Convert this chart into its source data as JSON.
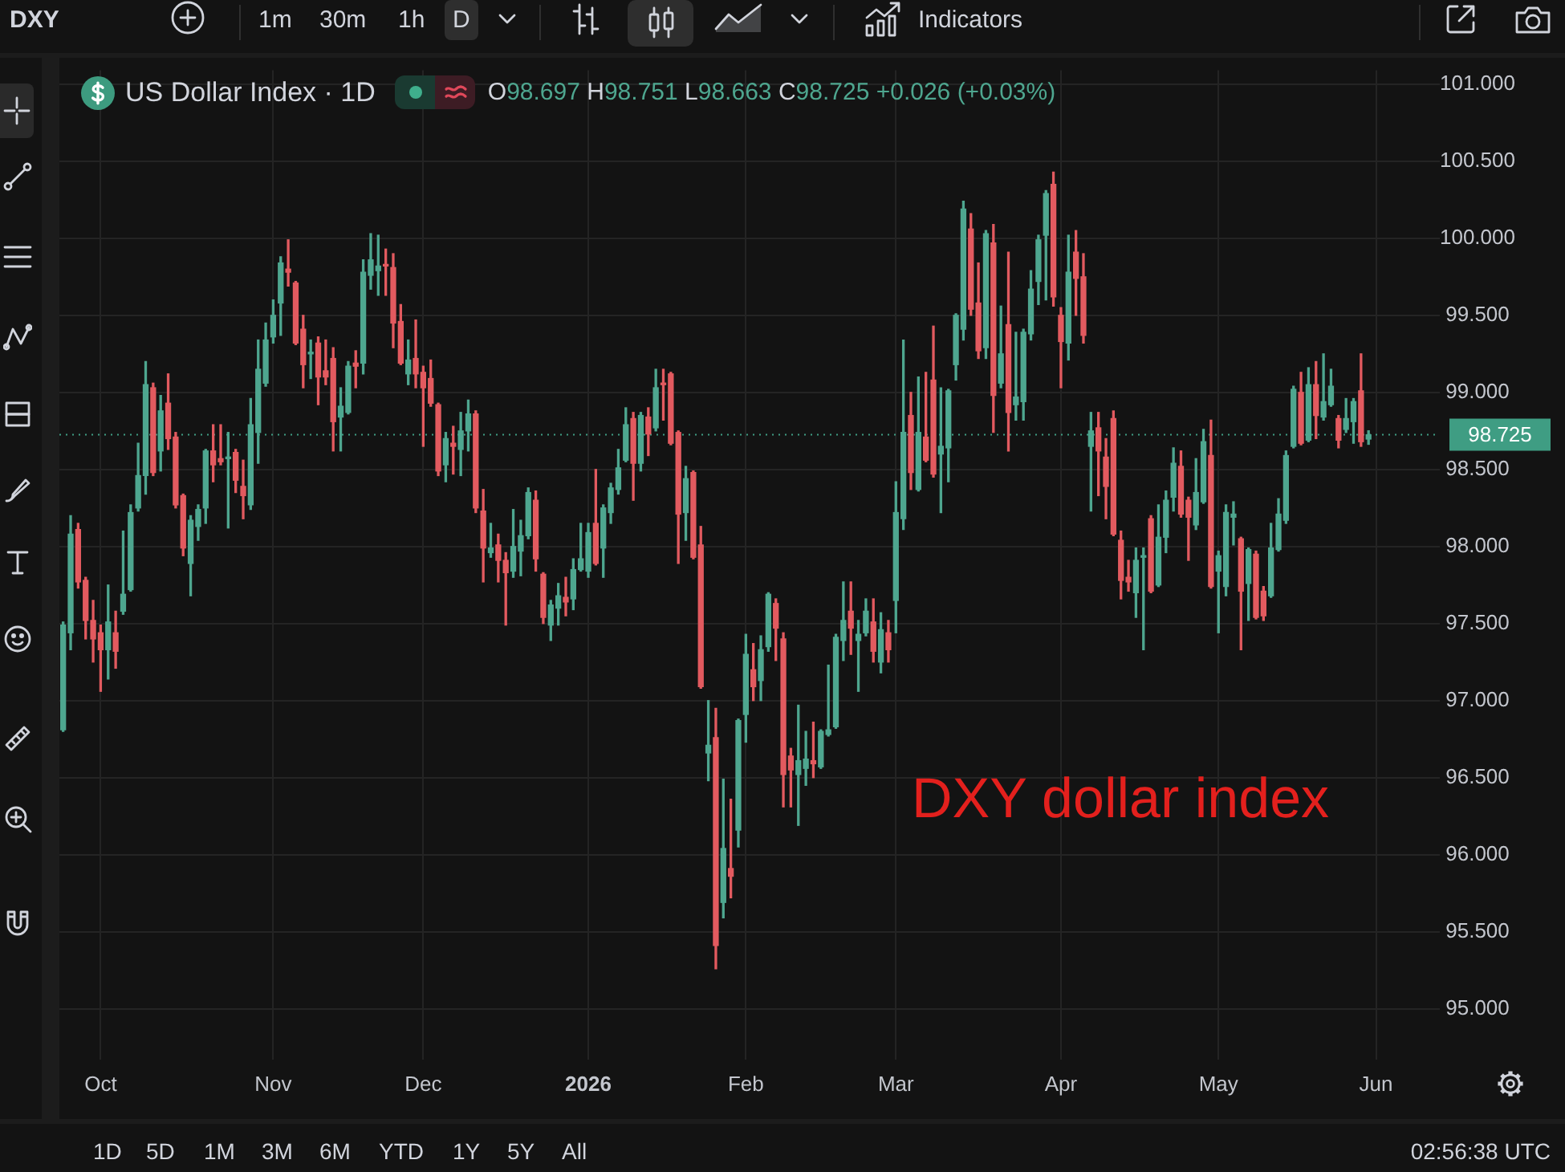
{
  "chart_data": {
    "type": "candlestick",
    "title": "US Dollar Index · 1D",
    "subtitle": "O98.697 H98.751 L98.663 C98.725 +0.026 (+0.03%)",
    "annotations": [
      "DXY dollar index",
      "DXY",
      "1m",
      "30m",
      "1h",
      "D",
      "Indicators",
      "1D",
      "5D",
      "1M",
      "3M",
      "6M",
      "YTD",
      "1Y",
      "5Y",
      "All",
      "02:56:38 UTC"
    ],
    "categories": [
      null,
      null,
      null,
      null,
      null,
      "Oct",
      null,
      null,
      null,
      null,
      null,
      null,
      null,
      null,
      null,
      null,
      null,
      null,
      null,
      null,
      null,
      null,
      null,
      null,
      null,
      null,
      null,
      null,
      "Nov",
      null,
      null,
      null,
      null,
      null,
      null,
      null,
      null,
      null,
      null,
      null,
      null,
      null,
      null,
      null,
      null,
      null,
      null,
      null,
      "Dec",
      null,
      null,
      null,
      null,
      null,
      null,
      null,
      null,
      null,
      null,
      null,
      null,
      null,
      null,
      null,
      null,
      null,
      null,
      null,
      null,
      null,
      "2026",
      null,
      null,
      null,
      null,
      null,
      null,
      null,
      null,
      null,
      null,
      null,
      null,
      null,
      null,
      null,
      null,
      null,
      null,
      null,
      null,
      "Feb",
      null,
      null,
      null,
      null,
      null,
      null,
      null,
      null,
      null,
      null,
      null,
      null,
      null,
      null,
      null,
      null,
      null,
      null,
      null,
      "Mar",
      null,
      null,
      null,
      null,
      null,
      null,
      null,
      null,
      null,
      null,
      null,
      null,
      null,
      null,
      null,
      null,
      null,
      null,
      null,
      null,
      null,
      "Apr",
      null,
      null,
      null,
      null,
      null,
      null,
      null,
      null,
      null,
      null,
      null,
      null,
      null,
      null,
      null,
      null,
      null,
      null,
      null,
      null,
      "May",
      null,
      null,
      null,
      null,
      null,
      null,
      null,
      null,
      null,
      null,
      null,
      null,
      null,
      null,
      null,
      null,
      null,
      null,
      null,
      null,
      "Jun"
    ],
    "ohlc": [
      [
        96.81,
        97.51,
        96.8,
        97.49
      ],
      [
        97.44,
        98.2,
        97.33,
        98.08
      ],
      [
        98.11,
        98.15,
        97.73,
        97.77
      ],
      [
        97.78,
        97.8,
        97.4,
        97.52
      ],
      [
        97.52,
        97.65,
        97.25,
        97.4
      ],
      [
        97.44,
        97.49,
        97.06,
        97.33
      ],
      [
        97.33,
        97.75,
        97.14,
        97.51
      ],
      [
        97.44,
        97.58,
        97.21,
        97.32
      ],
      [
        97.58,
        98.1,
        97.56,
        97.69
      ],
      [
        97.72,
        98.27,
        97.71,
        98.22
      ],
      [
        98.25,
        98.67,
        98.23,
        98.46
      ],
      [
        98.46,
        99.2,
        98.34,
        99.05
      ],
      [
        99.03,
        99.06,
        98.46,
        98.48
      ],
      [
        98.62,
        98.98,
        98.49,
        98.88
      ],
      [
        98.93,
        99.12,
        98.63,
        98.7
      ],
      [
        98.71,
        98.74,
        98.25,
        98.27
      ],
      [
        98.33,
        98.34,
        97.94,
        97.99
      ],
      [
        97.89,
        98.2,
        97.68,
        98.17
      ],
      [
        98.13,
        98.27,
        98.04,
        98.24
      ],
      [
        98.25,
        98.63,
        98.15,
        98.62
      ],
      [
        98.62,
        98.79,
        98.42,
        98.53
      ],
      [
        98.57,
        98.79,
        98.53,
        98.55
      ],
      [
        98.57,
        98.74,
        98.12,
        98.58
      ],
      [
        98.61,
        98.63,
        98.35,
        98.43
      ],
      [
        98.39,
        98.56,
        98.18,
        98.33
      ],
      [
        98.27,
        98.96,
        98.24,
        98.79
      ],
      [
        98.74,
        99.34,
        98.54,
        99.15
      ],
      [
        99.06,
        99.45,
        99.04,
        99.34
      ],
      [
        99.36,
        99.6,
        99.32,
        99.5
      ],
      [
        99.58,
        99.88,
        99.37,
        99.84
      ],
      [
        99.8,
        99.99,
        99.69,
        99.78
      ],
      [
        99.71,
        99.72,
        99.31,
        99.32
      ],
      [
        99.41,
        99.5,
        99.03,
        99.18
      ],
      [
        99.25,
        99.34,
        99.09,
        99.26
      ],
      [
        99.32,
        99.36,
        98.92,
        99.1
      ],
      [
        99.14,
        99.34,
        99.05,
        99.1
      ],
      [
        99.22,
        99.29,
        98.62,
        98.81
      ],
      [
        98.84,
        99.03,
        98.62,
        98.91
      ],
      [
        98.87,
        99.2,
        98.86,
        99.17
      ],
      [
        99.19,
        99.27,
        99.03,
        99.17
      ],
      [
        99.19,
        99.86,
        99.12,
        99.78
      ],
      [
        99.76,
        100.03,
        99.67,
        99.86
      ],
      [
        99.79,
        100.02,
        99.63,
        99.82
      ],
      [
        99.83,
        99.93,
        99.63,
        99.82
      ],
      [
        99.81,
        99.9,
        99.29,
        99.45
      ],
      [
        99.46,
        99.57,
        99.18,
        99.19
      ],
      [
        99.12,
        99.34,
        99.05,
        99.21
      ],
      [
        99.22,
        99.47,
        99.03,
        99.12
      ],
      [
        99.13,
        99.17,
        98.65,
        99.03
      ],
      [
        99.09,
        99.21,
        98.91,
        98.93
      ],
      [
        98.92,
        98.93,
        98.46,
        98.49
      ],
      [
        98.53,
        98.74,
        98.42,
        98.7
      ],
      [
        98.67,
        98.78,
        98.47,
        98.65
      ],
      [
        98.63,
        98.87,
        98.46,
        98.75
      ],
      [
        98.75,
        98.95,
        98.62,
        98.86
      ],
      [
        98.86,
        98.88,
        98.22,
        98.25
      ],
      [
        98.23,
        98.37,
        97.77,
        97.99
      ],
      [
        97.96,
        98.15,
        97.93,
        97.99
      ],
      [
        98.01,
        98.08,
        97.77,
        97.91
      ],
      [
        97.91,
        97.96,
        97.49,
        97.83
      ],
      [
        97.84,
        98.24,
        97.8,
        98.0
      ],
      [
        97.97,
        98.17,
        97.81,
        98.07
      ],
      [
        98.07,
        98.38,
        98.05,
        98.35
      ],
      [
        98.3,
        98.36,
        97.84,
        97.92
      ],
      [
        97.82,
        97.83,
        97.5,
        97.54
      ],
      [
        97.49,
        97.65,
        97.39,
        97.62
      ],
      [
        97.6,
        97.76,
        97.49,
        97.68
      ],
      [
        97.67,
        97.8,
        97.55,
        97.64
      ],
      [
        97.66,
        97.92,
        97.59,
        97.85
      ],
      [
        97.85,
        98.15,
        97.84,
        97.92
      ],
      [
        97.84,
        98.15,
        97.8,
        98.09
      ],
      [
        98.15,
        98.5,
        97.88,
        97.89
      ],
      [
        97.99,
        98.27,
        97.8,
        98.25
      ],
      [
        98.22,
        98.41,
        98.15,
        98.38
      ],
      [
        98.37,
        98.63,
        98.34,
        98.51
      ],
      [
        98.56,
        98.9,
        98.55,
        98.79
      ],
      [
        98.83,
        98.87,
        98.3,
        98.54
      ],
      [
        98.54,
        98.87,
        98.49,
        98.85
      ],
      [
        98.84,
        98.9,
        98.59,
        98.73
      ],
      [
        98.77,
        99.15,
        98.75,
        99.03
      ],
      [
        99.06,
        99.15,
        98.82,
        99.05
      ],
      [
        99.12,
        99.13,
        98.66,
        98.67
      ],
      [
        98.74,
        98.75,
        97.89,
        98.21
      ],
      [
        98.22,
        98.52,
        98.04,
        98.44
      ],
      [
        98.48,
        98.49,
        97.92,
        97.93
      ],
      [
        98.01,
        98.13,
        97.08,
        97.09
      ],
      [
        96.66,
        97.0,
        96.48,
        96.71
      ],
      [
        96.76,
        96.95,
        95.26,
        95.41
      ],
      [
        95.69,
        96.49,
        95.59,
        96.04
      ],
      [
        95.91,
        96.36,
        95.72,
        95.86
      ],
      [
        96.16,
        96.88,
        96.05,
        96.87
      ],
      [
        96.91,
        97.43,
        96.73,
        97.3
      ],
      [
        97.2,
        97.37,
        97.0,
        97.09
      ],
      [
        97.13,
        97.42,
        97.0,
        97.33
      ],
      [
        97.35,
        97.7,
        97.32,
        97.69
      ],
      [
        97.63,
        97.66,
        97.26,
        97.47
      ],
      [
        97.4,
        97.44,
        96.31,
        96.52
      ],
      [
        96.64,
        96.69,
        96.31,
        96.55
      ],
      [
        96.52,
        96.97,
        96.19,
        96.61
      ],
      [
        96.56,
        96.8,
        96.45,
        96.62
      ],
      [
        96.61,
        96.86,
        96.5,
        96.59
      ],
      [
        96.57,
        96.81,
        96.56,
        96.8
      ],
      [
        96.78,
        97.23,
        96.77,
        96.81
      ],
      [
        96.83,
        97.43,
        96.82,
        97.41
      ],
      [
        97.39,
        97.77,
        97.26,
        97.52
      ],
      [
        97.58,
        97.77,
        97.3,
        97.47
      ],
      [
        97.39,
        97.52,
        97.06,
        97.43
      ],
      [
        97.44,
        97.66,
        97.42,
        97.58
      ],
      [
        97.51,
        97.66,
        97.25,
        97.32
      ],
      [
        97.25,
        97.57,
        97.18,
        97.46
      ],
      [
        97.44,
        97.52,
        97.25,
        97.33
      ],
      [
        97.65,
        98.42,
        97.44,
        98.22
      ],
      [
        98.18,
        99.34,
        98.11,
        98.74
      ],
      [
        98.85,
        99.0,
        98.37,
        98.48
      ],
      [
        98.37,
        99.1,
        98.36,
        98.74
      ],
      [
        98.71,
        99.13,
        98.55,
        98.56
      ],
      [
        99.08,
        99.43,
        98.45,
        98.47
      ],
      [
        98.6,
        99.03,
        98.22,
        98.65
      ],
      [
        98.64,
        99.02,
        98.42,
        99.01
      ],
      [
        99.18,
        99.51,
        99.08,
        99.5
      ],
      [
        99.41,
        100.24,
        99.34,
        100.19
      ],
      [
        100.06,
        100.16,
        99.5,
        99.54
      ],
      [
        99.58,
        99.84,
        99.22,
        99.27
      ],
      [
        99.29,
        100.05,
        99.22,
        100.03
      ],
      [
        99.97,
        100.09,
        98.74,
        98.98
      ],
      [
        99.06,
        99.56,
        99.03,
        99.25
      ],
      [
        99.44,
        99.91,
        98.62,
        98.87
      ],
      [
        98.92,
        99.39,
        98.82,
        98.97
      ],
      [
        98.94,
        99.41,
        98.82,
        99.39
      ],
      [
        99.38,
        99.79,
        99.34,
        99.67
      ],
      [
        99.72,
        100.02,
        99.57,
        99.99
      ],
      [
        100.02,
        100.31,
        99.6,
        100.29
      ],
      [
        100.35,
        100.43,
        99.56,
        99.62
      ],
      [
        99.5,
        99.55,
        99.03,
        99.33
      ],
      [
        99.32,
        100.02,
        99.21,
        99.78
      ],
      [
        99.91,
        100.05,
        99.5,
        99.74
      ],
      [
        99.75,
        99.9,
        99.32,
        99.37
      ],
      [
        98.65,
        98.87,
        98.23,
        98.75
      ],
      [
        98.77,
        98.87,
        98.33,
        98.62
      ],
      [
        98.58,
        98.7,
        98.18,
        98.39
      ],
      [
        98.83,
        98.88,
        98.07,
        98.08
      ],
      [
        98.04,
        98.1,
        97.66,
        97.78
      ],
      [
        97.8,
        97.91,
        97.71,
        97.77
      ],
      [
        97.7,
        97.99,
        97.54,
        97.91
      ],
      [
        97.93,
        97.99,
        97.33,
        97.94
      ],
      [
        98.18,
        98.2,
        97.7,
        97.71
      ],
      [
        97.75,
        98.27,
        97.74,
        98.06
      ],
      [
        98.06,
        98.36,
        97.96,
        98.3
      ],
      [
        98.32,
        98.64,
        98.23,
        98.54
      ],
      [
        98.52,
        98.62,
        98.19,
        98.21
      ],
      [
        98.3,
        98.32,
        97.91,
        98.19
      ],
      [
        98.14,
        98.57,
        98.11,
        98.35
      ],
      [
        98.29,
        98.76,
        98.28,
        98.68
      ],
      [
        98.59,
        98.82,
        97.73,
        97.74
      ],
      [
        97.84,
        97.97,
        97.44,
        97.94
      ],
      [
        97.74,
        98.27,
        97.68,
        98.22
      ],
      [
        98.19,
        98.29,
        98.01,
        98.21
      ],
      [
        98.05,
        98.06,
        97.33,
        97.71
      ],
      [
        97.76,
        97.99,
        97.52,
        97.98
      ],
      [
        97.95,
        97.97,
        97.53,
        97.54
      ],
      [
        97.71,
        97.74,
        97.52,
        97.55
      ],
      [
        97.68,
        98.15,
        97.67,
        97.99
      ],
      [
        97.98,
        98.31,
        97.97,
        98.21
      ],
      [
        98.17,
        98.62,
        98.15,
        98.59
      ],
      [
        98.65,
        99.04,
        98.64,
        99.02
      ],
      [
        99.0,
        99.13,
        98.66,
        98.67
      ],
      [
        98.69,
        99.16,
        98.68,
        99.05
      ],
      [
        99.05,
        99.2,
        98.7,
        98.85
      ],
      [
        98.84,
        99.25,
        98.82,
        98.94
      ],
      [
        98.92,
        99.15,
        98.91,
        99.04
      ],
      [
        98.83,
        98.85,
        98.64,
        98.69
      ],
      [
        98.76,
        98.96,
        98.74,
        98.83
      ],
      [
        98.81,
        98.96,
        98.67,
        98.94
      ],
      [
        99.01,
        99.25,
        98.65,
        98.68
      ],
      [
        98.697,
        98.751,
        98.663,
        98.725
      ],
      null
    ],
    "colors": [
      "#4ea68f",
      "#4ea68f",
      "#e25a5f",
      "#e25a5f",
      "#e25a5f",
      "#e25a5f",
      "#4ea68f",
      "#e25a5f",
      "#4ea68f",
      "#4ea68f",
      "#4ea68f",
      "#4ea68f",
      "#e25a5f",
      "#4ea68f",
      "#e25a5f",
      "#e25a5f",
      "#e25a5f",
      "#4ea68f",
      "#4ea68f",
      "#4ea68f",
      "#e25a5f",
      "#e25a5f",
      "#4ea68f",
      "#e25a5f",
      "#e25a5f",
      "#4ea68f",
      "#4ea68f",
      "#4ea68f",
      "#4ea68f",
      "#4ea68f",
      "#e25a5f",
      "#e25a5f",
      "#e25a5f",
      "#4ea68f",
      "#e25a5f",
      "#e25a5f",
      "#e25a5f",
      "#4ea68f",
      "#4ea68f",
      "#e25a5f",
      "#4ea68f",
      "#4ea68f",
      "#4ea68f",
      "#e25a5f",
      "#e25a5f",
      "#e25a5f",
      "#4ea68f",
      "#e25a5f",
      "#e25a5f",
      "#e25a5f",
      "#e25a5f",
      "#4ea68f",
      "#e25a5f",
      "#4ea68f",
      "#4ea68f",
      "#e25a5f",
      "#e25a5f",
      "#4ea68f",
      "#e25a5f",
      "#e25a5f",
      "#4ea68f",
      "#4ea68f",
      "#4ea68f",
      "#e25a5f",
      "#e25a5f",
      "#4ea68f",
      "#4ea68f",
      "#e25a5f",
      "#4ea68f",
      "#4ea68f",
      "#4ea68f",
      "#e25a5f",
      "#4ea68f",
      "#4ea68f",
      "#4ea68f",
      "#4ea68f",
      "#e25a5f",
      "#4ea68f",
      "#e25a5f",
      "#4ea68f",
      "#e25a5f",
      "#e25a5f",
      "#e25a5f",
      "#4ea68f",
      "#e25a5f",
      "#e25a5f",
      "#4ea68f",
      "#e25a5f",
      "#4ea68f",
      "#e25a5f",
      "#4ea68f",
      "#4ea68f",
      "#e25a5f",
      "#4ea68f",
      "#4ea68f",
      "#e25a5f",
      "#e25a5f",
      "#e25a5f",
      "#4ea68f",
      "#4ea68f",
      "#e25a5f",
      "#4ea68f",
      "#4ea68f",
      "#4ea68f",
      "#4ea68f",
      "#e25a5f",
      "#4ea68f",
      "#4ea68f",
      "#e25a5f",
      "#4ea68f",
      "#e25a5f",
      "#4ea68f",
      "#4ea68f",
      "#e25a5f",
      "#4ea68f",
      "#e25a5f",
      "#e25a5f",
      "#4ea68f",
      "#4ea68f",
      "#4ea68f",
      "#4ea68f",
      "#e25a5f",
      "#e25a5f",
      "#4ea68f",
      "#e25a5f",
      "#4ea68f",
      "#e25a5f",
      "#4ea68f",
      "#4ea68f",
      "#4ea68f",
      "#4ea68f",
      "#4ea68f",
      "#e25a5f",
      "#e25a5f",
      "#4ea68f",
      "#e25a5f",
      "#e25a5f",
      "#4ea68f",
      "#e25a5f",
      "#e25a5f",
      "#e25a5f",
      "#e25a5f",
      "#e25a5f",
      "#4ea68f",
      "#4ea68f",
      "#e25a5f",
      "#4ea68f",
      "#4ea68f",
      "#4ea68f",
      "#e25a5f",
      "#e25a5f",
      "#4ea68f",
      "#4ea68f",
      "#e25a5f",
      "#4ea68f",
      "#4ea68f",
      "#4ea68f",
      "#e25a5f",
      "#4ea68f",
      "#e25a5f",
      "#e25a5f",
      "#4ea68f",
      "#4ea68f",
      "#4ea68f",
      "#4ea68f",
      "#e25a5f",
      "#4ea68f",
      "#e25a5f",
      "#4ea68f",
      "#4ea68f",
      "#e25a5f",
      "#4ea68f",
      "#4ea68f",
      "#e25a5f",
      "#4ea68f",
      null
    ],
    "ylim": [
      94.67,
      101.09
    ],
    "yticks": [
      {
        "value": 95,
        "label": "95.000"
      },
      {
        "value": 95.5,
        "label": "95.500"
      },
      {
        "value": 96,
        "label": "96.000"
      },
      {
        "value": 96.5,
        "label": "96.500"
      },
      {
        "value": 97,
        "label": "97.000"
      },
      {
        "value": 97.5,
        "label": "97.500"
      },
      {
        "value": 98,
        "label": "98.000"
      },
      {
        "value": 98.5,
        "label": "98.500"
      },
      {
        "value": 99,
        "label": "99.000"
      },
      {
        "value": 99.5,
        "label": "99.500"
      },
      {
        "value": 100,
        "label": "100.000"
      },
      {
        "value": 100.5,
        "label": "100.500"
      },
      {
        "value": 101,
        "label": "101.000"
      }
    ],
    "ref_lines": [
      {
        "axis": "y",
        "value": 98.725,
        "label": "98.725",
        "color": "#3f9d83",
        "line_style": "dotted"
      }
    ],
    "grid": true
  }
}
